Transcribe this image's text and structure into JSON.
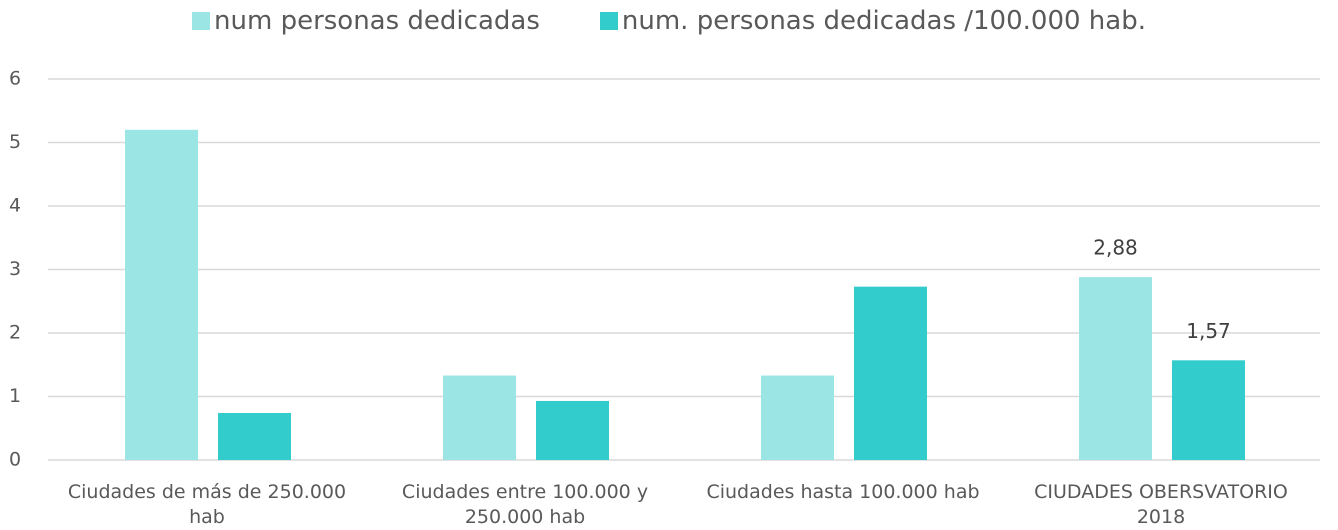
{
  "chart_data": {
    "type": "bar",
    "categories": [
      "Ciudades de más de 250.000 hab",
      "Ciudades entre 100.000 y 250.000 hab",
      "Ciudades hasta 100.000 hab",
      "CIUDADES OBERSVATORIO 2018"
    ],
    "series": [
      {
        "name": "num personas dedicadas",
        "color": "#9be5e5",
        "values": [
          5.2,
          1.33,
          1.33,
          2.88
        ],
        "value_labels": [
          null,
          null,
          null,
          "2,88"
        ]
      },
      {
        "name": "num. personas dedicadas /100.000 hab.",
        "color": "#33cccc",
        "values": [
          0.74,
          0.93,
          2.73,
          1.57
        ],
        "value_labels": [
          null,
          null,
          null,
          "1,57"
        ]
      }
    ],
    "ylim": [
      0,
      6
    ],
    "yticks": [
      0,
      1,
      2,
      3,
      4,
      5,
      6
    ],
    "grid": true,
    "legend": "top"
  }
}
